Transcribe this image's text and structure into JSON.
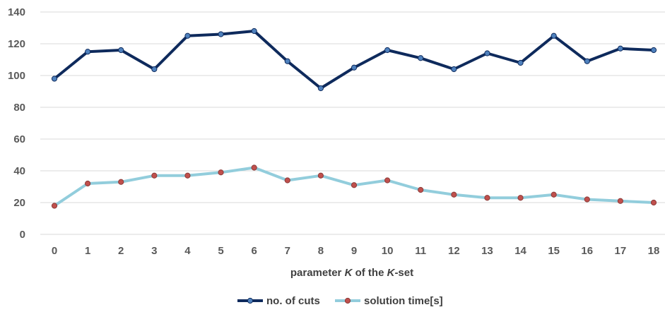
{
  "chart_data": {
    "type": "line",
    "x": [
      0,
      1,
      2,
      3,
      4,
      5,
      6,
      7,
      8,
      9,
      10,
      11,
      12,
      13,
      14,
      15,
      16,
      17,
      18
    ],
    "categories": [
      "0",
      "1",
      "2",
      "3",
      "4",
      "5",
      "6",
      "7",
      "8",
      "9",
      "10",
      "11",
      "12",
      "13",
      "14",
      "15",
      "16",
      "17",
      "18"
    ],
    "xlabel": "parameter K of the K-set",
    "xlabel_parts": [
      {
        "text": "parameter ",
        "italic": false
      },
      {
        "text": "K",
        "italic": true
      },
      {
        "text": " of the ",
        "italic": false
      },
      {
        "text": "K",
        "italic": true
      },
      {
        "text": "-set",
        "italic": false
      }
    ],
    "ylabel": "",
    "title": "",
    "ylim": [
      0,
      140
    ],
    "yticks": [
      0,
      20,
      40,
      60,
      80,
      100,
      120,
      140
    ],
    "ytick_labels": [
      "0",
      "20",
      "40",
      "60",
      "80",
      "100",
      "120",
      "140"
    ],
    "grid": "horizontal",
    "legend_position": "bottom",
    "series": [
      {
        "name": "no. of cuts",
        "line_color": "#0e2a5c",
        "marker_color": "#4f81bd",
        "values": [
          98,
          115,
          116,
          104,
          125,
          126,
          128,
          109,
          92,
          105,
          116,
          111,
          104,
          114,
          108,
          125,
          109,
          117,
          116
        ]
      },
      {
        "name": "solution time[s]",
        "line_color": "#92cddc",
        "marker_color": "#c0504d",
        "values": [
          18,
          32,
          33,
          37,
          37,
          39,
          42,
          34,
          37,
          31,
          34,
          28,
          25,
          23,
          23,
          25,
          22,
          21,
          20
        ]
      }
    ]
  }
}
